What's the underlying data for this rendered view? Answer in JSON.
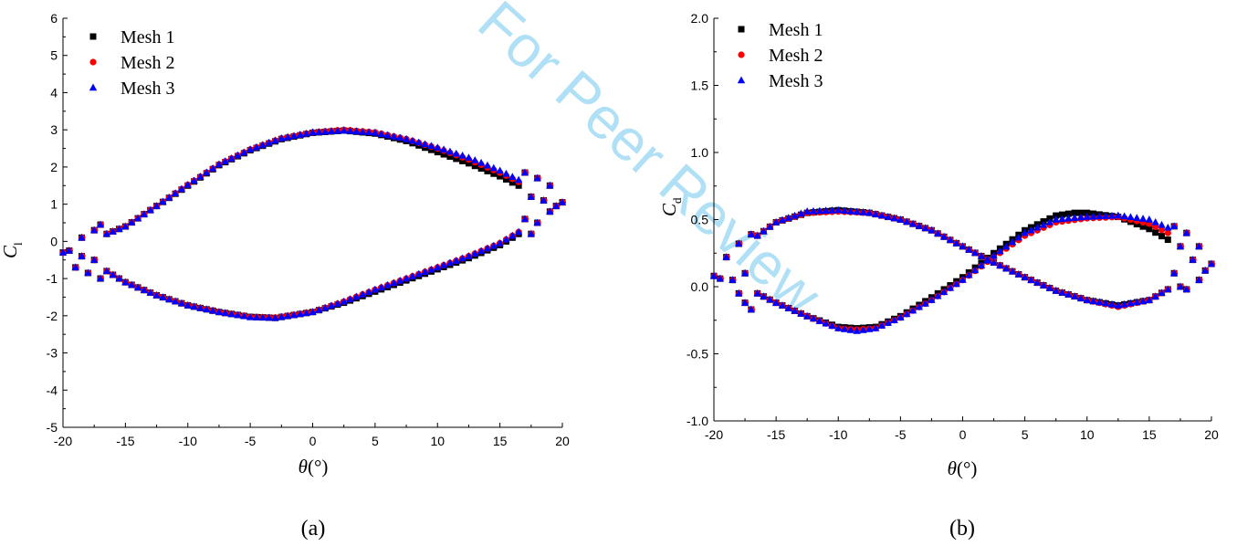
{
  "watermark": "For Peer Review",
  "colors": {
    "mesh1": "#000000",
    "mesh2": "#ff0000",
    "mesh3": "#0000ff"
  },
  "chart_data": [
    {
      "type": "scatter",
      "caption": "(a)",
      "xlabel": "θ",
      "xlabel_unit": "(°)",
      "ylabel": "C",
      "ylabel_sub": "l",
      "xlim": [
        -20,
        20
      ],
      "ylim": [
        -5,
        6
      ],
      "xticks": [
        -20,
        -15,
        -10,
        -5,
        0,
        5,
        10,
        15,
        20
      ],
      "yticks": [
        -5,
        -4,
        -3,
        -2,
        -1,
        0,
        1,
        2,
        3,
        4,
        5,
        6
      ],
      "legend_position": "top-left",
      "series": [
        {
          "name": "Mesh 1",
          "marker": "square",
          "curves": [
            [
              [
                -16.5,
                0.2
              ],
              [
                -15,
                0.4
              ],
              [
                -12.5,
                0.95
              ],
              [
                -10,
                1.5
              ],
              [
                -7.5,
                2.05
              ],
              [
                -5,
                2.45
              ],
              [
                -2.5,
                2.75
              ],
              [
                0,
                2.92
              ],
              [
                2.5,
                2.98
              ],
              [
                5,
                2.9
              ],
              [
                7.5,
                2.7
              ],
              [
                10,
                2.4
              ],
              [
                12.5,
                2.1
              ],
              [
                15,
                1.75
              ],
              [
                16.5,
                1.5
              ]
            ],
            [
              [
                -16.5,
                -0.8
              ],
              [
                -15,
                -1.1
              ],
              [
                -12.5,
                -1.45
              ],
              [
                -10,
                -1.72
              ],
              [
                -7.5,
                -1.9
              ],
              [
                -5,
                -2.03
              ],
              [
                -3,
                -2.06
              ],
              [
                0,
                -1.9
              ],
              [
                2.5,
                -1.65
              ],
              [
                5,
                -1.35
              ],
              [
                7.5,
                -1.05
              ],
              [
                10,
                -0.75
              ],
              [
                12.5,
                -0.45
              ],
              [
                15,
                -0.1
              ],
              [
                16.5,
                0.2
              ]
            ]
          ]
        },
        {
          "name": "Mesh 2",
          "marker": "circle",
          "curves": [
            [
              [
                -16.5,
                0.2
              ],
              [
                -15,
                0.4
              ],
              [
                -12.5,
                0.95
              ],
              [
                -10,
                1.52
              ],
              [
                -7.5,
                2.07
              ],
              [
                -5,
                2.47
              ],
              [
                -2.5,
                2.77
              ],
              [
                0,
                2.93
              ],
              [
                2.5,
                3.0
              ],
              [
                5,
                2.93
              ],
              [
                7.5,
                2.75
              ],
              [
                10,
                2.5
              ],
              [
                12.5,
                2.2
              ],
              [
                15,
                1.85
              ],
              [
                16.5,
                1.6
              ]
            ],
            [
              [
                -16.5,
                -0.8
              ],
              [
                -15,
                -1.1
              ],
              [
                -12.5,
                -1.45
              ],
              [
                -10,
                -1.72
              ],
              [
                -7.5,
                -1.9
              ],
              [
                -5,
                -2.03
              ],
              [
                -3,
                -2.05
              ],
              [
                0,
                -1.9
              ],
              [
                2.5,
                -1.62
              ],
              [
                5,
                -1.3
              ],
              [
                7.5,
                -1.0
              ],
              [
                10,
                -0.7
              ],
              [
                12.5,
                -0.4
              ],
              [
                15,
                -0.05
              ],
              [
                16.5,
                0.25
              ]
            ]
          ]
        },
        {
          "name": "Mesh 3",
          "marker": "triangle",
          "curves": [
            [
              [
                -16.5,
                0.2
              ],
              [
                -15,
                0.4
              ],
              [
                -12.5,
                0.95
              ],
              [
                -10,
                1.52
              ],
              [
                -7.5,
                2.07
              ],
              [
                -5,
                2.47
              ],
              [
                -2.5,
                2.77
              ],
              [
                0,
                2.93
              ],
              [
                2.5,
                2.98
              ],
              [
                5,
                2.92
              ],
              [
                7.5,
                2.75
              ],
              [
                10,
                2.52
              ],
              [
                12.5,
                2.25
              ],
              [
                15,
                1.9
              ],
              [
                16.5,
                1.65
              ]
            ],
            [
              [
                -16.5,
                -0.8
              ],
              [
                -15,
                -1.1
              ],
              [
                -12.5,
                -1.45
              ],
              [
                -10,
                -1.72
              ],
              [
                -7.5,
                -1.9
              ],
              [
                -5,
                -2.04
              ],
              [
                -3,
                -2.06
              ],
              [
                0,
                -1.9
              ],
              [
                2.5,
                -1.62
              ],
              [
                5,
                -1.3
              ],
              [
                7.5,
                -1.0
              ],
              [
                10,
                -0.7
              ],
              [
                12.5,
                -0.4
              ],
              [
                15,
                -0.05
              ],
              [
                16.5,
                0.25
              ]
            ]
          ]
        }
      ],
      "scatter_points": [
        [
          -20,
          -0.3
        ],
        [
          -19.5,
          -0.25
        ],
        [
          -19,
          -0.7
        ],
        [
          -18.5,
          0.1
        ],
        [
          -18.5,
          -0.4
        ],
        [
          -18,
          -0.85
        ],
        [
          -17.5,
          0.3
        ],
        [
          -17.5,
          -0.5
        ],
        [
          -17,
          -1.0
        ],
        [
          -17,
          0.45
        ],
        [
          17,
          1.85
        ],
        [
          17,
          0.6
        ],
        [
          17.5,
          1.2
        ],
        [
          17.5,
          0.2
        ],
        [
          18,
          1.7
        ],
        [
          18,
          0.5
        ],
        [
          18.5,
          1.1
        ],
        [
          19,
          1.5
        ],
        [
          19,
          0.8
        ],
        [
          19.5,
          0.95
        ],
        [
          20,
          1.05
        ]
      ]
    },
    {
      "type": "scatter",
      "caption": "(b)",
      "xlabel": "θ",
      "xlabel_unit": "(°)",
      "ylabel": "C",
      "ylabel_sub": "d",
      "xlim": [
        -20,
        20
      ],
      "ylim": [
        -1.0,
        2.0
      ],
      "xticks": [
        -20,
        -15,
        -10,
        -5,
        0,
        5,
        10,
        15,
        20
      ],
      "yticks": [
        -1.0,
        -0.5,
        0.0,
        0.5,
        1.0,
        1.5,
        2.0
      ],
      "legend_position": "top-left",
      "series": [
        {
          "name": "Mesh 1",
          "marker": "square",
          "curves": [
            [
              [
                -16.5,
                0.38
              ],
              [
                -15,
                0.48
              ],
              [
                -12.5,
                0.55
              ],
              [
                -10,
                0.57
              ],
              [
                -7.5,
                0.55
              ],
              [
                -5,
                0.5
              ],
              [
                -2.5,
                0.42
              ],
              [
                0,
                0.3
              ],
              [
                2.5,
                0.18
              ],
              [
                5,
                0.07
              ],
              [
                7.5,
                -0.03
              ],
              [
                10,
                -0.1
              ],
              [
                12.5,
                -0.14
              ],
              [
                15,
                -0.1
              ],
              [
                16.5,
                -0.02
              ]
            ],
            [
              [
                -16.5,
                -0.05
              ],
              [
                -15,
                -0.12
              ],
              [
                -12.5,
                -0.22
              ],
              [
                -10,
                -0.3
              ],
              [
                -8.5,
                -0.31
              ],
              [
                -7,
                -0.3
              ],
              [
                -5,
                -0.22
              ],
              [
                -2.5,
                -0.08
              ],
              [
                0,
                0.07
              ],
              [
                2.5,
                0.25
              ],
              [
                5,
                0.42
              ],
              [
                7.5,
                0.53
              ],
              [
                9,
                0.55
              ],
              [
                10,
                0.55
              ],
              [
                12.5,
                0.52
              ],
              [
                15,
                0.43
              ],
              [
                16.5,
                0.35
              ]
            ]
          ]
        },
        {
          "name": "Mesh 2",
          "marker": "circle",
          "curves": [
            [
              [
                -16.5,
                0.38
              ],
              [
                -15,
                0.48
              ],
              [
                -12.5,
                0.55
              ],
              [
                -10,
                0.56
              ],
              [
                -7.5,
                0.55
              ],
              [
                -5,
                0.5
              ],
              [
                -2.5,
                0.42
              ],
              [
                0,
                0.3
              ],
              [
                2.5,
                0.18
              ],
              [
                5,
                0.07
              ],
              [
                7.5,
                -0.03
              ],
              [
                10,
                -0.1
              ],
              [
                12.5,
                -0.15
              ],
              [
                15,
                -0.1
              ],
              [
                16.5,
                -0.02
              ]
            ],
            [
              [
                -16.5,
                -0.05
              ],
              [
                -15,
                -0.12
              ],
              [
                -12.5,
                -0.22
              ],
              [
                -10,
                -0.31
              ],
              [
                -8.5,
                -0.32
              ],
              [
                -7,
                -0.31
              ],
              [
                -5,
                -0.23
              ],
              [
                -2.5,
                -0.1
              ],
              [
                0,
                0.05
              ],
              [
                2.5,
                0.22
              ],
              [
                5,
                0.38
              ],
              [
                7.5,
                0.48
              ],
              [
                10,
                0.51
              ],
              [
                12.5,
                0.52
              ],
              [
                15,
                0.47
              ],
              [
                16.5,
                0.4
              ]
            ]
          ]
        },
        {
          "name": "Mesh 3",
          "marker": "triangle",
          "curves": [
            [
              [
                -16.5,
                0.38
              ],
              [
                -15,
                0.48
              ],
              [
                -12.5,
                0.56
              ],
              [
                -10,
                0.57
              ],
              [
                -7.5,
                0.55
              ],
              [
                -5,
                0.5
              ],
              [
                -2.5,
                0.42
              ],
              [
                0,
                0.3
              ],
              [
                2.5,
                0.18
              ],
              [
                5,
                0.07
              ],
              [
                7.5,
                -0.03
              ],
              [
                10,
                -0.1
              ],
              [
                12.5,
                -0.14
              ],
              [
                15,
                -0.1
              ],
              [
                16.5,
                -0.02
              ]
            ],
            [
              [
                -16.5,
                -0.05
              ],
              [
                -15,
                -0.12
              ],
              [
                -12.5,
                -0.22
              ],
              [
                -10,
                -0.31
              ],
              [
                -8.5,
                -0.33
              ],
              [
                -7,
                -0.31
              ],
              [
                -5,
                -0.23
              ],
              [
                -2.5,
                -0.1
              ],
              [
                0,
                0.05
              ],
              [
                2.5,
                0.23
              ],
              [
                5,
                0.4
              ],
              [
                7.5,
                0.5
              ],
              [
                10,
                0.52
              ],
              [
                12.5,
                0.53
              ],
              [
                15,
                0.5
              ],
              [
                16.5,
                0.44
              ]
            ]
          ]
        }
      ],
      "scatter_points": [
        [
          -20,
          0.08
        ],
        [
          -19.5,
          0.06
        ],
        [
          -19,
          0.22
        ],
        [
          -18.5,
          0.05
        ],
        [
          -18,
          -0.05
        ],
        [
          -18,
          0.32
        ],
        [
          -17.5,
          -0.12
        ],
        [
          -17.5,
          0.1
        ],
        [
          -17,
          -0.17
        ],
        [
          -17,
          0.39
        ],
        [
          17,
          0.45
        ],
        [
          17,
          0.1
        ],
        [
          17.5,
          0.3
        ],
        [
          17.5,
          0.0
        ],
        [
          18,
          0.4
        ],
        [
          18,
          -0.02
        ],
        [
          18.5,
          0.2
        ],
        [
          19,
          0.3
        ],
        [
          19,
          0.05
        ],
        [
          19.5,
          0.12
        ],
        [
          20,
          0.17
        ]
      ]
    }
  ]
}
